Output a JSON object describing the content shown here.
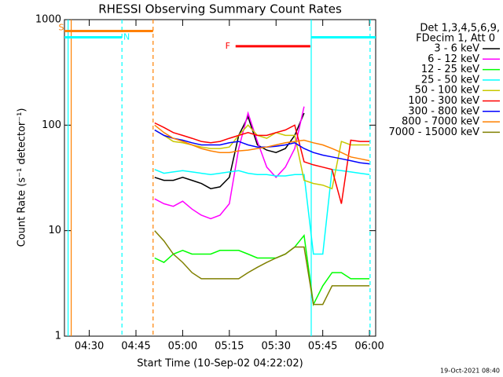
{
  "chart_data": {
    "type": "line",
    "title": "RHESSI Observing Summary Count Rates",
    "xlabel": "Start Time (10-Sep-02 04:22:02)",
    "ylabel": "Count Rate (s⁻¹ detector⁻¹)",
    "legend_header": [
      "Det 1,3,4,5,6,9,",
      "FDecim 1, Att 0"
    ],
    "timestamp": "19-Oct-2021 08:40",
    "log_y": true,
    "xlim": [
      22.03,
      122
    ],
    "ylim": [
      1,
      1000
    ],
    "xticks": [
      {
        "value": 30,
        "label": "04:30"
      },
      {
        "value": 45,
        "label": "04:45"
      },
      {
        "value": 60,
        "label": "05:00"
      },
      {
        "value": 75,
        "label": "05:15"
      },
      {
        "value": 90,
        "label": "05:30"
      },
      {
        "value": 105,
        "label": "05:45"
      },
      {
        "value": 120,
        "label": "06:00"
      }
    ],
    "yticks": [
      1,
      10,
      100,
      1000
    ],
    "x": [
      51,
      54,
      57,
      60,
      63,
      66,
      69,
      72,
      75,
      78,
      81,
      84,
      87,
      90,
      93,
      96,
      99,
      102,
      105,
      108,
      111,
      114,
      117,
      120
    ],
    "series": [
      {
        "name": "3 - 6 keV",
        "color": "#000000",
        "values": [
          32,
          30,
          30,
          32,
          30,
          28,
          25,
          26,
          32,
          80,
          120,
          65,
          58,
          55,
          60,
          80,
          130,
          null,
          null,
          null,
          null,
          null,
          null,
          null
        ]
      },
      {
        "name": "6 - 12 keV",
        "color": "#ff00ff",
        "values": [
          20,
          18,
          17,
          19,
          16,
          14,
          13,
          14,
          18,
          60,
          130,
          70,
          40,
          32,
          40,
          60,
          150,
          null,
          null,
          null,
          null,
          null,
          null,
          null
        ]
      },
      {
        "name": "12 - 25 keV",
        "color": "#00ff00",
        "values": [
          5.5,
          5,
          6,
          6.5,
          6,
          6,
          6,
          6.5,
          6.5,
          6.5,
          6,
          5.5,
          5.5,
          5.5,
          6,
          7,
          9,
          2,
          3,
          4,
          4,
          3.5,
          3.5,
          3.5
        ]
      },
      {
        "name": "25 - 50 keV",
        "color": "#00ffff",
        "values": [
          38,
          35,
          36,
          37,
          36,
          35,
          34,
          35,
          36,
          37,
          35,
          34,
          34,
          33,
          33,
          34,
          34,
          6,
          6,
          38,
          37,
          36,
          35,
          34
        ]
      },
      {
        "name": "50 - 100 keV",
        "color": "#c8c800",
        "values": [
          90,
          80,
          70,
          68,
          65,
          62,
          60,
          60,
          62,
          80,
          100,
          80,
          75,
          85,
          80,
          80,
          30,
          28,
          27,
          25,
          70,
          65,
          65,
          65
        ]
      },
      {
        "name": "100 - 300 keV",
        "color": "#ff0000",
        "values": [
          105,
          95,
          85,
          80,
          75,
          70,
          68,
          70,
          75,
          80,
          85,
          80,
          80,
          85,
          90,
          100,
          45,
          42,
          40,
          38,
          18,
          72,
          70,
          70
        ]
      },
      {
        "name": "300 - 800 keV",
        "color": "#0000ff",
        "values": [
          90,
          80,
          75,
          72,
          68,
          65,
          65,
          65,
          68,
          70,
          65,
          62,
          62,
          63,
          65,
          68,
          60,
          55,
          52,
          50,
          48,
          46,
          44,
          43
        ]
      },
      {
        "name": "800 - 7000 keV",
        "color": "#ff8000",
        "values": [
          100,
          85,
          75,
          70,
          65,
          60,
          57,
          55,
          55,
          57,
          58,
          60,
          62,
          65,
          68,
          70,
          72,
          68,
          65,
          60,
          55,
          50,
          48,
          46
        ]
      },
      {
        "name": "7000 - 15000 keV",
        "color": "#808000",
        "values": [
          10,
          8,
          6,
          5,
          4,
          3.5,
          3.5,
          3.5,
          3.5,
          3.5,
          4,
          4.5,
          5,
          5.5,
          6,
          7,
          7,
          2,
          2,
          3,
          3,
          3,
          3,
          3
        ]
      }
    ],
    "bars": [
      {
        "label": "S",
        "x": [
          22.03,
          50.5
        ],
        "y": 780,
        "color": "#ff8000"
      },
      {
        "label": "N",
        "x": [
          22.03,
          40.5
        ],
        "y": 680,
        "color": "#00ffff"
      },
      {
        "label": "F",
        "x": [
          77,
          101
        ],
        "y": 560,
        "color": "#ff0000"
      },
      {
        "x": [
          101.3,
          122
        ],
        "y": 680,
        "color": "#00ffff"
      }
    ],
    "vlines": [
      {
        "x": 23.2,
        "color": "#00ffff",
        "dashed": false
      },
      {
        "x": 24.2,
        "color": "#ff8000",
        "dashed": false
      },
      {
        "x": 40.5,
        "color": "#00ffff",
        "dashed": true
      },
      {
        "x": 50.5,
        "color": "#ff8000",
        "dashed": true
      },
      {
        "x": 101.3,
        "color": "#00ffff",
        "dashed": false
      },
      {
        "x": 120.2,
        "color": "#00ffff",
        "dashed": true
      }
    ]
  }
}
